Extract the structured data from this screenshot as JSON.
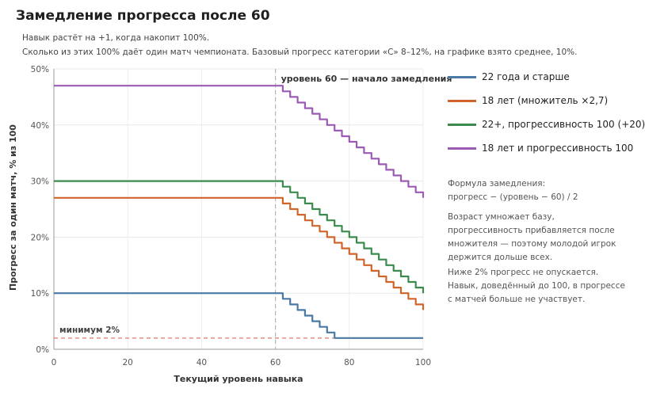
{
  "header": {
    "title": "Замедление прогресса после 60",
    "subtitle_1": "Навык растёт на +1, когда накопит 100%.",
    "subtitle_2": "Сколько из этих 100% даёт один матч чемпионата. Базовый прогресс категории «C» 8–12%, на графике взято среднее, 10%."
  },
  "chart_data": {
    "type": "line",
    "xlabel": "Текущий уровень навыка",
    "ylabel": "Прогресс за один матч, % из 100",
    "xlim": [
      0,
      100
    ],
    "ylim": [
      0,
      50
    ],
    "x_ticks": [
      "0",
      "20",
      "40",
      "60",
      "80",
      "100"
    ],
    "y_ticks": [
      "0%",
      "10%",
      "20%",
      "30%",
      "40%",
      "50%"
    ],
    "grid": true,
    "step_formula": "max(2, base − floor((level − 60)/2))",
    "series": [
      {
        "name": "22 года и старше",
        "color": "#4a79a5",
        "base": 10,
        "min": 2
      },
      {
        "name": "18 лет (множитель ×2,7)",
        "color": "#d0642a",
        "base": 27,
        "min": 2
      },
      {
        "name": "22+, прогрессивность 100 (+20)",
        "color": "#3a8b4d",
        "base": 30,
        "min": 2
      },
      {
        "name": "18 лет и прогрессивность 100",
        "color": "#9b5bb5",
        "base": 47,
        "min": 2
      }
    ],
    "annotations": {
      "vline": {
        "x": 60,
        "label": "уровень 60 — начало замедления",
        "color": "#b5b5b5"
      },
      "hline": {
        "y": 2,
        "label": "минимум 2%",
        "color": "#e57373"
      }
    },
    "legend_position": "right"
  },
  "notes": {
    "formula_line1": "Формула замедления:",
    "formula_line2": "прогресс − (уровень − 60) / 2",
    "para2": "Возраст умножает базу, прогрессивность прибавляется после множителя — поэтому молодой игрок держится дольше всех.",
    "para3": "Ниже 2% прогресс не опускается. Навык, доведённый до 100, в прогрессе с матчей больше не участвует."
  }
}
